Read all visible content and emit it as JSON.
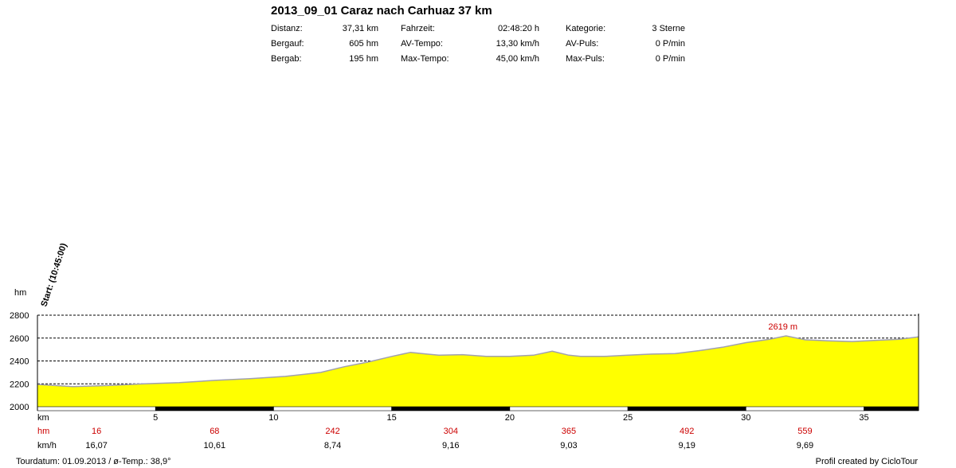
{
  "header": {
    "title": "2013_09_01 Caraz nach Carhuaz 37 km",
    "stats": [
      {
        "label": "Distanz:",
        "value": "37,31 km"
      },
      {
        "label": "Bergauf:",
        "value": "605 hm"
      },
      {
        "label": "Bergab:",
        "value": "195 hm"
      },
      {
        "label": "Fahrzeit:",
        "value": "02:48:20 h"
      },
      {
        "label": "AV-Tempo:",
        "value": "13,30 km/h"
      },
      {
        "label": "Max-Tempo:",
        "value": "45,00 km/h"
      },
      {
        "label": "Kategorie:",
        "value": "3 Sterne"
      },
      {
        "label": "AV-Puls:",
        "value": "0 P/min"
      },
      {
        "label": "Max-Puls:",
        "value": "0 P/min"
      }
    ]
  },
  "chart_data": {
    "type": "area",
    "title": "",
    "ylabel": "hm",
    "xlabel": "km",
    "xlim": [
      0,
      37.31
    ],
    "ylim": [
      2000,
      2800
    ],
    "yticks": [
      "2000",
      "2200",
      "2400",
      "2600",
      "2800"
    ],
    "xticks": [
      "5",
      "10",
      "15",
      "20",
      "25",
      "30",
      "35"
    ],
    "grid": true,
    "colors": {
      "fill": "#ffff00",
      "line": "#a0a0b0",
      "accent": "#cc0000"
    },
    "x": [
      0,
      1.5,
      3,
      4.5,
      6,
      7.5,
      9,
      10.5,
      12,
      13,
      14,
      15,
      15.8,
      16.5,
      17,
      18,
      19,
      20,
      21,
      21.8,
      22.5,
      23,
      24,
      25,
      26,
      27,
      28,
      29,
      30,
      31,
      31.7,
      32.5,
      33.5,
      34.5,
      35.5,
      36.5,
      37.31
    ],
    "y": [
      2195,
      2175,
      2185,
      2200,
      2210,
      2230,
      2245,
      2265,
      2300,
      2350,
      2390,
      2440,
      2475,
      2460,
      2450,
      2455,
      2440,
      2440,
      2450,
      2485,
      2450,
      2440,
      2440,
      2450,
      2460,
      2465,
      2490,
      2520,
      2560,
      2590,
      2619,
      2585,
      2575,
      2570,
      2580,
      2590,
      2610
    ],
    "peak": {
      "x": 31.7,
      "y": 2619,
      "label": "2619 m"
    },
    "start_label": "Start: (10:45:00)",
    "rows": [
      {
        "label": "km",
        "color": "#000000"
      },
      {
        "label": "hm",
        "color": "#cc0000",
        "values": [
          "16",
          "68",
          "242",
          "304",
          "365",
          "492",
          "559"
        ]
      },
      {
        "label": "km/h",
        "color": "#000000",
        "values": [
          "16,07",
          "10,61",
          "8,74",
          "9,16",
          "9,03",
          "9,19",
          "9,69"
        ]
      }
    ],
    "row_value_x": [
      2.5,
      7.5,
      12.5,
      17.5,
      22.5,
      27.5,
      32.5
    ]
  },
  "footer": {
    "left": "Tourdatum: 01.09.2013  /  ø-Temp.: 38,9°",
    "right": "Profil created by CicloTour"
  }
}
